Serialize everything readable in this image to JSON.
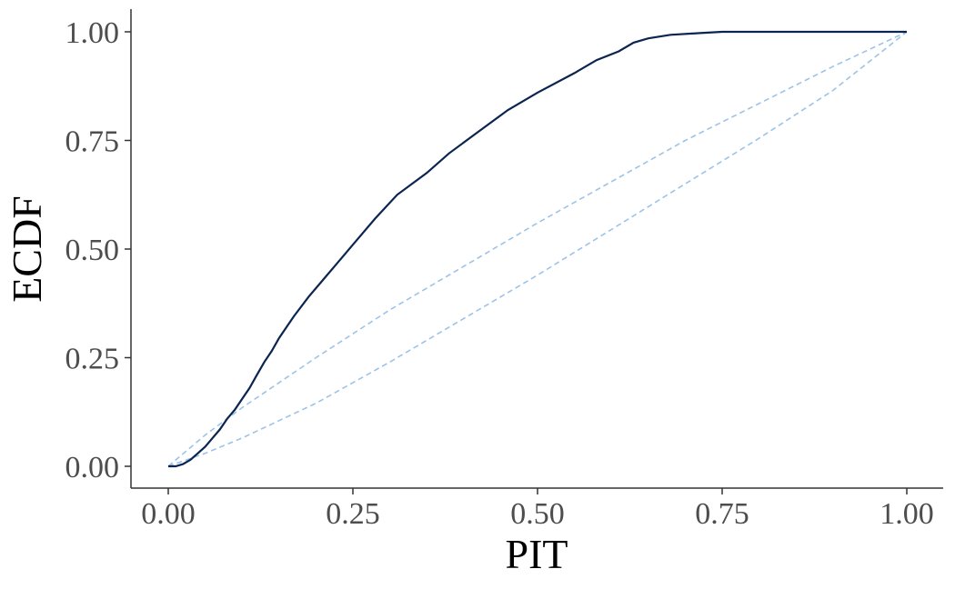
{
  "chart_data": {
    "type": "line",
    "xlabel": "PIT",
    "ylabel": "ECDF",
    "xlim": [
      0,
      1
    ],
    "ylim": [
      0,
      1
    ],
    "x_ticks": [
      "0.00",
      "0.25",
      "0.50",
      "0.75",
      "1.00"
    ],
    "y_ticks": [
      "0.00",
      "0.25",
      "0.50",
      "0.75",
      "1.00"
    ],
    "grid": false,
    "legend": "none",
    "colors": {
      "ecdf": "#0b2550",
      "band": "#9dc3e6",
      "axis": "#333333"
    },
    "series": [
      {
        "role": "ecdf",
        "style": "solid",
        "x": [
          0.0,
          0.01,
          0.02,
          0.03,
          0.04,
          0.05,
          0.06,
          0.07,
          0.08,
          0.09,
          0.1,
          0.11,
          0.12,
          0.13,
          0.14,
          0.15,
          0.17,
          0.19,
          0.21,
          0.23,
          0.25,
          0.28,
          0.31,
          0.35,
          0.38,
          0.42,
          0.46,
          0.5,
          0.55,
          0.58,
          0.61,
          0.63,
          0.65,
          0.68,
          0.72,
          0.75,
          0.8,
          0.9,
          1.0
        ],
        "y": [
          0.0,
          0.0,
          0.005,
          0.015,
          0.03,
          0.045,
          0.065,
          0.085,
          0.11,
          0.13,
          0.155,
          0.18,
          0.21,
          0.24,
          0.265,
          0.295,
          0.345,
          0.39,
          0.43,
          0.47,
          0.51,
          0.57,
          0.625,
          0.675,
          0.72,
          0.77,
          0.82,
          0.86,
          0.905,
          0.935,
          0.955,
          0.975,
          0.985,
          0.993,
          0.997,
          1.0,
          1.0,
          1.0,
          1.0
        ]
      },
      {
        "role": "band-upper",
        "style": "dashed",
        "x": [
          0.0,
          0.05,
          0.1,
          0.2,
          0.3,
          0.4,
          0.5,
          0.6,
          0.7,
          0.8,
          0.9,
          1.0
        ],
        "y": [
          0.0,
          0.072,
          0.135,
          0.25,
          0.36,
          0.46,
          0.56,
          0.655,
          0.75,
          0.835,
          0.92,
          1.0
        ]
      },
      {
        "role": "band-lower",
        "style": "dashed",
        "x": [
          0.0,
          0.05,
          0.1,
          0.2,
          0.3,
          0.4,
          0.5,
          0.6,
          0.7,
          0.8,
          0.9,
          1.0
        ],
        "y": [
          0.0,
          0.03,
          0.065,
          0.145,
          0.24,
          0.34,
          0.44,
          0.545,
          0.65,
          0.755,
          0.865,
          1.0
        ]
      }
    ]
  }
}
